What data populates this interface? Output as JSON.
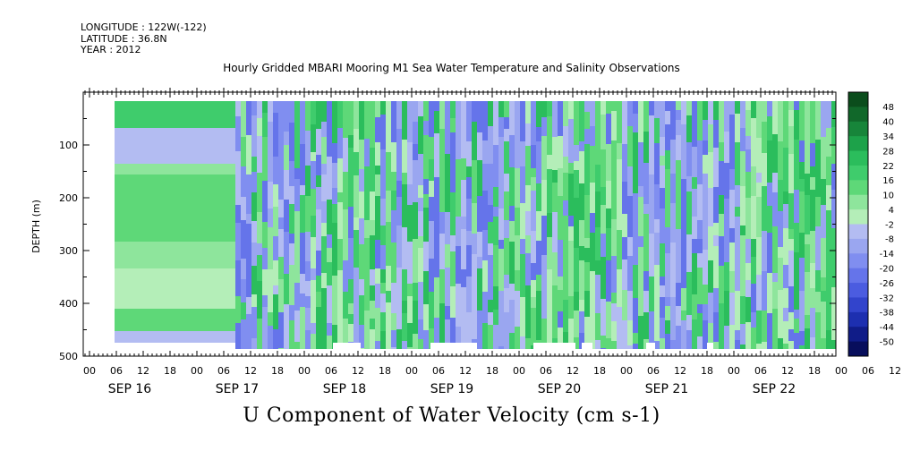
{
  "header": {
    "longitude": "LONGITUDE : 122W(-122)",
    "latitude": "LATITUDE : 36.8N",
    "year": "YEAR : 2012"
  },
  "title": "Hourly Gridded MBARI Mooring M1 Sea Water Temperature and Salinity Observations",
  "bottom_title": "U Component of Water Velocity (cm s-1)",
  "colors": {
    "negative": "#9aa6f0",
    "positive": "#5ed878",
    "background": "#ffffff"
  },
  "chart_data": {
    "type": "heatmap",
    "ylabel": "DEPTH (m)",
    "ylim": [
      500,
      0
    ],
    "y_ticks": [
      100,
      200,
      300,
      400,
      500
    ],
    "x_hour_ticks": [
      "00",
      "06",
      "12",
      "18",
      "00",
      "06",
      "12",
      "18",
      "00",
      "06",
      "12",
      "18",
      "00",
      "06",
      "12",
      "18",
      "00",
      "06",
      "12",
      "18",
      "00",
      "06",
      "12",
      "18",
      "00",
      "06",
      "12",
      "18",
      "00",
      "06",
      "12",
      "18"
    ],
    "x_day_labels": [
      "SEP 16",
      "SEP 17",
      "SEP 18",
      "SEP 19",
      "SEP 20",
      "SEP 21",
      "SEP 22"
    ],
    "colorbar": {
      "levels": [
        48,
        40,
        34,
        28,
        22,
        16,
        10,
        4,
        -2,
        -8,
        -14,
        -20,
        -26,
        -32,
        -38,
        -44,
        -50
      ],
      "colors": [
        "#0b4d1c",
        "#11682a",
        "#17853a",
        "#1da24a",
        "#2bbd5c",
        "#3fcc6c",
        "#5ed878",
        "#8ee59c",
        "#b4eeb8",
        "#b3bcf2",
        "#9aa6f0",
        "#808ef0",
        "#6574ea",
        "#4b5ce0",
        "#3244cc",
        "#1d2fb0",
        "#101c88",
        "#080e5c"
      ]
    },
    "grid": false,
    "legend": "right"
  }
}
